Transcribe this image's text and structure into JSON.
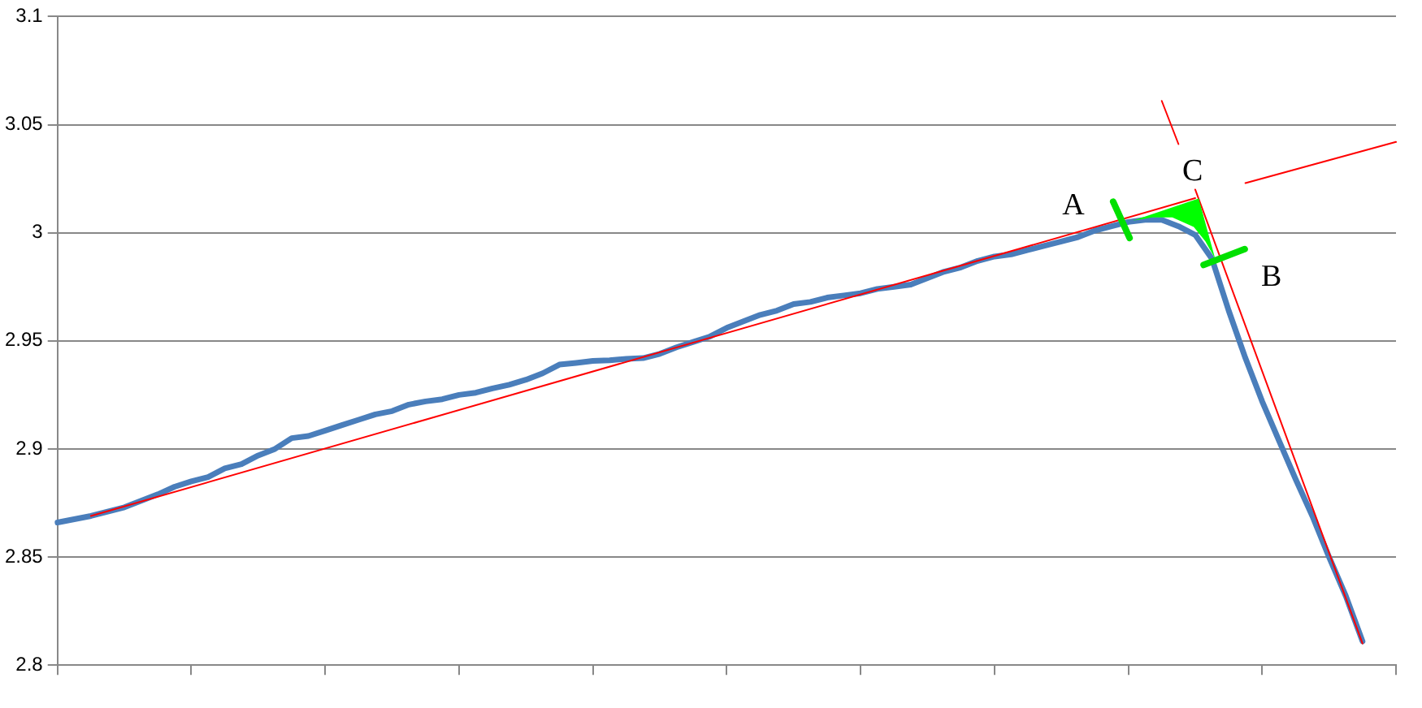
{
  "chart_data": {
    "type": "line",
    "categories": [
      null,
      null,
      null,
      null,
      null,
      null,
      null,
      null,
      null,
      null,
      null,
      null,
      null,
      null,
      null,
      null,
      null,
      null,
      null,
      null,
      null,
      null,
      null,
      null,
      null,
      null,
      null,
      null,
      null,
      null,
      null,
      null,
      null,
      null,
      null,
      null,
      null,
      null,
      null,
      null,
      null,
      null,
      null,
      null,
      null,
      null,
      null,
      null,
      null,
      null,
      null,
      null,
      null,
      null,
      null,
      null,
      null,
      null,
      null,
      null,
      null,
      null,
      null,
      null,
      null,
      null,
      null,
      null,
      null,
      null,
      null,
      null,
      null,
      null,
      null,
      null,
      null,
      null,
      null,
      null,
      null
    ],
    "ylim": [
      2.8,
      3.1
    ],
    "yticks": [
      2.8,
      2.85,
      2.9,
      2.95,
      3,
      3.05,
      3.1
    ],
    "grid": "y",
    "legend": false,
    "marker": "none",
    "tick_labels": "y",
    "annotations": [
      "A",
      "C",
      "B"
    ],
    "series": [
      {
        "color": "#4a7ebb",
        "values": [
          2.866,
          2.8675,
          2.869,
          2.871,
          2.873,
          2.876,
          2.879,
          2.8825,
          2.885,
          2.887,
          2.891,
          2.893,
          2.897,
          2.9,
          2.905,
          2.906,
          2.9085,
          2.911,
          2.9135,
          2.916,
          2.9175,
          2.9205,
          2.922,
          2.923,
          2.925,
          2.926,
          2.928,
          2.9297,
          2.932,
          2.935,
          2.939,
          2.9398,
          2.9407,
          2.941,
          2.9417,
          2.942,
          2.944,
          2.947,
          2.9495,
          2.952,
          2.956,
          2.959,
          2.962,
          2.964,
          2.967,
          2.968,
          2.97,
          2.971,
          2.972,
          2.974,
          2.975,
          2.976,
          2.979,
          2.982,
          2.984,
          2.987,
          2.989,
          2.99,
          2.992,
          2.994,
          2.996,
          2.998,
          3.001,
          3.003,
          3.005,
          3.006,
          3.006,
          3.003,
          2.999,
          2.988,
          2.964,
          2.942,
          2.922,
          2.904,
          2.886,
          2.869,
          2.85,
          2.832,
          2.811,
          null,
          null
        ]
      },
      {
        "color": "#ff0000",
        "values": [
          null,
          null,
          2.869,
          null,
          null,
          null,
          null,
          null,
          null,
          null,
          null,
          null,
          null,
          null,
          null,
          null,
          null,
          null,
          null,
          null,
          null,
          null,
          null,
          null,
          null,
          null,
          null,
          null,
          null,
          null,
          null,
          null,
          null,
          null,
          null,
          null,
          null,
          null,
          null,
          null,
          null,
          null,
          null,
          null,
          null,
          null,
          null,
          null,
          null,
          null,
          null,
          null,
          null,
          null,
          null,
          null,
          null,
          null,
          null,
          null,
          null,
          null,
          null,
          null,
          null,
          null,
          null,
          null,
          3.016,
          null,
          null,
          null,
          null,
          null,
          null,
          null,
          null,
          null,
          null,
          null,
          null
        ]
      },
      {
        "color": "#ff0000",
        "values": [
          null,
          null,
          null,
          null,
          null,
          null,
          null,
          null,
          null,
          null,
          null,
          null,
          null,
          null,
          null,
          null,
          null,
          null,
          null,
          null,
          null,
          null,
          null,
          null,
          null,
          null,
          null,
          null,
          null,
          null,
          null,
          null,
          null,
          null,
          null,
          null,
          null,
          null,
          null,
          null,
          null,
          null,
          null,
          null,
          null,
          null,
          null,
          null,
          null,
          null,
          null,
          null,
          null,
          null,
          null,
          null,
          null,
          null,
          null,
          null,
          null,
          null,
          null,
          null,
          null,
          null,
          null,
          null,
          null,
          null,
          null,
          3.023,
          null,
          null,
          null,
          null,
          null,
          null,
          null,
          null,
          3.042
        ]
      },
      {
        "color": "#ff0000",
        "values": [
          null,
          null,
          null,
          null,
          null,
          null,
          null,
          null,
          null,
          null,
          null,
          null,
          null,
          null,
          null,
          null,
          null,
          null,
          null,
          null,
          null,
          null,
          null,
          null,
          null,
          null,
          null,
          null,
          null,
          null,
          null,
          null,
          null,
          null,
          null,
          null,
          null,
          null,
          null,
          null,
          null,
          null,
          null,
          null,
          null,
          null,
          null,
          null,
          null,
          null,
          null,
          null,
          null,
          null,
          null,
          null,
          null,
          null,
          null,
          null,
          null,
          null,
          null,
          null,
          null,
          null,
          null,
          null,
          3.02,
          null,
          null,
          null,
          null,
          null,
          null,
          null,
          null,
          null,
          2.81,
          null,
          null
        ]
      },
      {
        "color": "#ff0000",
        "values": [
          null,
          null,
          null,
          null,
          null,
          null,
          null,
          null,
          null,
          null,
          null,
          null,
          null,
          null,
          null,
          null,
          null,
          null,
          null,
          null,
          null,
          null,
          null,
          null,
          null,
          null,
          null,
          null,
          null,
          null,
          null,
          null,
          null,
          null,
          null,
          null,
          null,
          null,
          null,
          null,
          null,
          null,
          null,
          null,
          null,
          null,
          null,
          null,
          null,
          null,
          null,
          null,
          null,
          null,
          null,
          null,
          null,
          null,
          null,
          null,
          null,
          null,
          null,
          null,
          null,
          null,
          3.061,
          3.041,
          null,
          null,
          null,
          null,
          null,
          null,
          null,
          null,
          null,
          null,
          null,
          null,
          null
        ]
      }
    ]
  }
}
